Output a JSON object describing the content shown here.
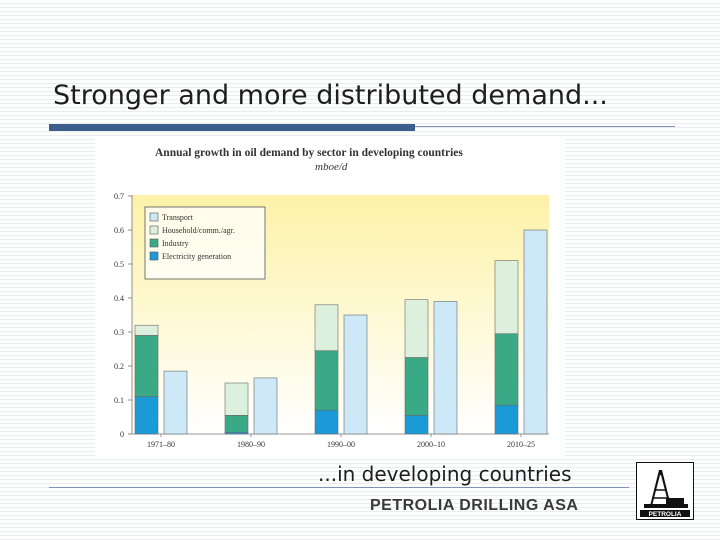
{
  "slide": {
    "title": "Stronger and more distributed demand...",
    "caption": "...in developing countries",
    "company": "PETROLIA DRILLING ASA",
    "logo_text": "PETROLIA",
    "logo_icon": "oil-rig-icon"
  },
  "colors": {
    "accent_rule": "#3d5d8c",
    "transport": "#cde9f7",
    "household": "#ddf0dd",
    "industry": "#3aaa86",
    "electricity": "#1a9bd7"
  },
  "chart_data": {
    "type": "bar",
    "title": "Annual growth in oil demand by sector in developing countries",
    "subtitle": "mboe/d",
    "xlabel": "",
    "ylabel": "",
    "ylim": [
      0,
      0.7
    ],
    "yticks": [
      "0",
      "0.1",
      "0.2",
      "0.3",
      "0.4",
      "0.5",
      "0.6",
      "0.7"
    ],
    "categories": [
      "1971–80",
      "1980–90",
      "1990–00",
      "2000–10",
      "2010–25"
    ],
    "stacked_series": [
      {
        "name": "Electricity generation",
        "color": "#1a9bd7",
        "values": [
          0.11,
          0.005,
          0.07,
          0.055,
          0.085
        ]
      },
      {
        "name": "Industry",
        "color": "#3aaa86",
        "values": [
          0.18,
          0.05,
          0.175,
          0.17,
          0.21
        ]
      },
      {
        "name": "Household/comm./agr.",
        "color": "#ddf0dd",
        "values": [
          0.03,
          0.095,
          0.135,
          0.17,
          0.215
        ]
      }
    ],
    "transport_series": {
      "name": "Transport",
      "color": "#cde9f7",
      "values": [
        0.185,
        0.165,
        0.35,
        0.39,
        0.6
      ]
    },
    "legend_order": [
      "Transport",
      "Household/comm./agr.",
      "Industry",
      "Electricity generation"
    ],
    "legend_placement": "top-left",
    "grid": false
  }
}
